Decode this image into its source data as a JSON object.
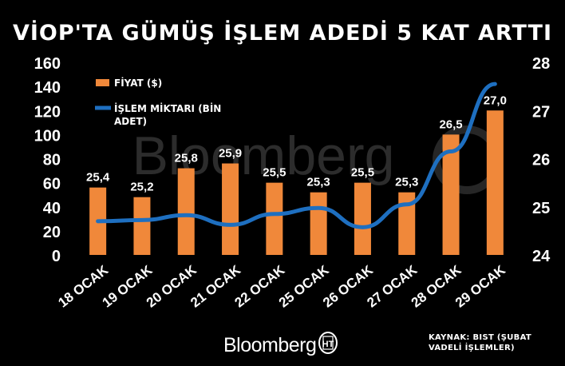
{
  "chart_data": {
    "type": "bar",
    "title": "VİOP'TA GÜMÜŞ İŞLEM ADEDİ 5 KAT ARTTI",
    "categories": [
      "18 OCAK",
      "19 OCAK",
      "20 OCAK",
      "21 OCAK",
      "22 OCAK",
      "25 OCAK",
      "26 OCAK",
      "27 OCAK",
      "28 OCAK",
      "29 OCAK"
    ],
    "series": [
      {
        "name": "FİYAT ($)",
        "type": "bar",
        "axis": "right",
        "color": "#f0883a",
        "values": [
          25.4,
          25.2,
          25.8,
          25.9,
          25.5,
          25.3,
          25.5,
          25.3,
          26.5,
          27.0
        ],
        "data_labels": [
          "25,4",
          "25,2",
          "25,8",
          "25,9",
          "25,5",
          "25,3",
          "25,5",
          "25,3",
          "26,5",
          "27,0"
        ]
      },
      {
        "name": "İŞLEM MİKTARI (BİN ADET)",
        "type": "line",
        "axis": "left",
        "color": "#1e6fc0",
        "values": [
          28,
          29,
          33,
          25,
          34,
          39,
          23,
          42,
          86,
          142
        ]
      }
    ],
    "y_left": {
      "min": 0,
      "max": 160,
      "ticks": [
        "0",
        "20",
        "40",
        "60",
        "80",
        "100",
        "120",
        "140",
        "160"
      ]
    },
    "y_right": {
      "min": 24,
      "max": 28,
      "ticks": [
        "24",
        "25",
        "26",
        "27",
        "28"
      ]
    },
    "legend": {
      "position": "top-left",
      "items": [
        {
          "label": "FİYAT ($)"
        },
        {
          "label": "İŞLEM MİKTARI (BİN",
          "label2": "ADET)"
        }
      ]
    },
    "grid": false
  },
  "source": {
    "line1": "KAYNAK: BIST (ŞUBAT",
    "line2": "VADELİ İŞLEMLER)"
  },
  "brand": {
    "name": "Bloomberg",
    "watermark": "Bloomberg",
    "logo_letters": "HT"
  }
}
